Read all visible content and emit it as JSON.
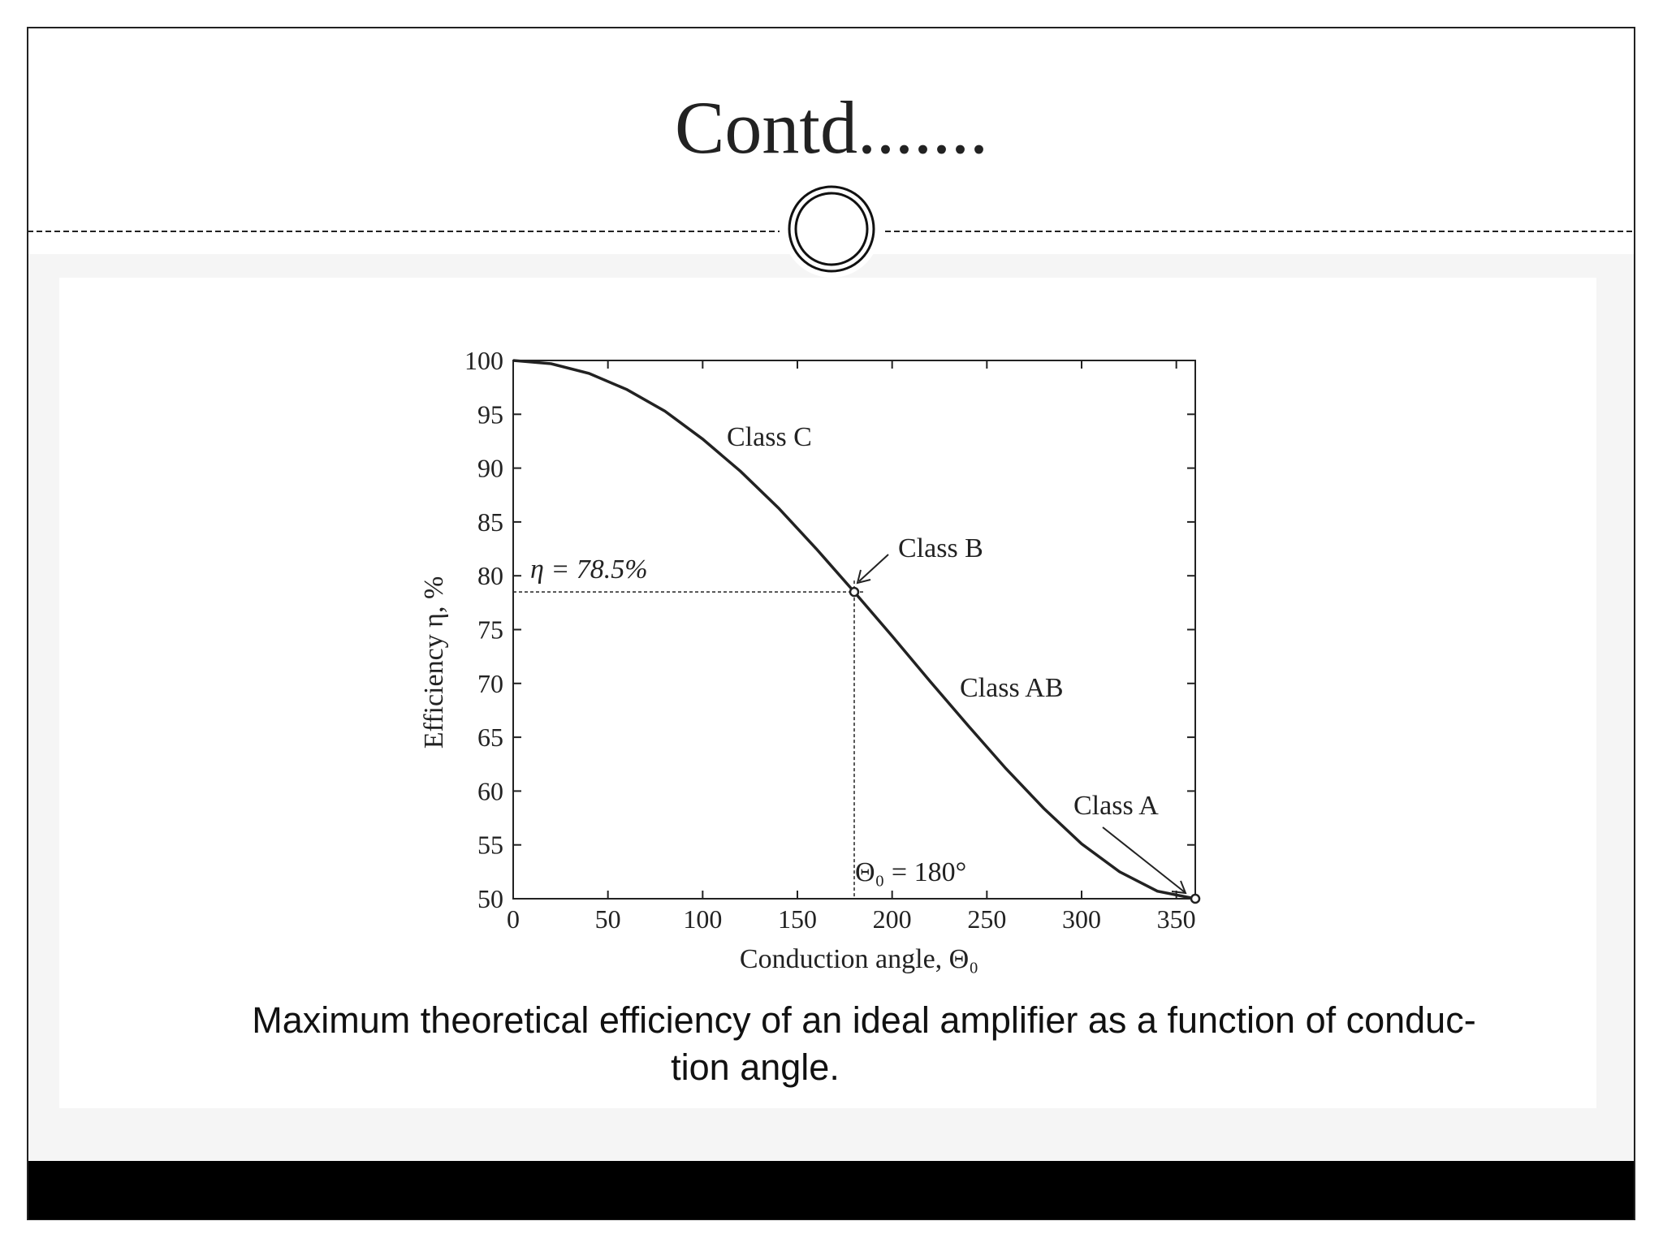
{
  "slide": {
    "title": "Contd.......",
    "caption": [
      "Maximum theoretical efficiency of an ideal amplifier as a function of conduc-",
      "tion angle."
    ]
  },
  "chart_data": {
    "type": "line",
    "xlabel": "Conduction angle, Θ₀",
    "ylabel": "Efficiency η, %",
    "x": [
      0,
      20,
      40,
      60,
      80,
      100,
      120,
      140,
      160,
      180,
      200,
      220,
      240,
      260,
      280,
      300,
      320,
      340,
      360
    ],
    "values": [
      100,
      99.7,
      98.8,
      97.3,
      95.3,
      92.7,
      89.7,
      86.3,
      82.5,
      78.5,
      74.4,
      70.2,
      66.1,
      62.1,
      58.4,
      55.1,
      52.5,
      50.7,
      50
    ],
    "color": "#222222",
    "xlim": [
      0,
      360
    ],
    "ylim": [
      50,
      100
    ],
    "xticks": [
      0,
      50,
      100,
      150,
      200,
      250,
      300,
      350
    ],
    "yticks": [
      50,
      55,
      60,
      65,
      70,
      75,
      80,
      85,
      90,
      95,
      100
    ],
    "markers": {
      "x": [
        180,
        360
      ],
      "y": [
        78.5,
        50
      ]
    },
    "annotations": [
      "Class C",
      "Class B",
      "Class AB",
      "Class A",
      "η = 78.5%",
      "Θ₀ = 180°"
    ]
  }
}
